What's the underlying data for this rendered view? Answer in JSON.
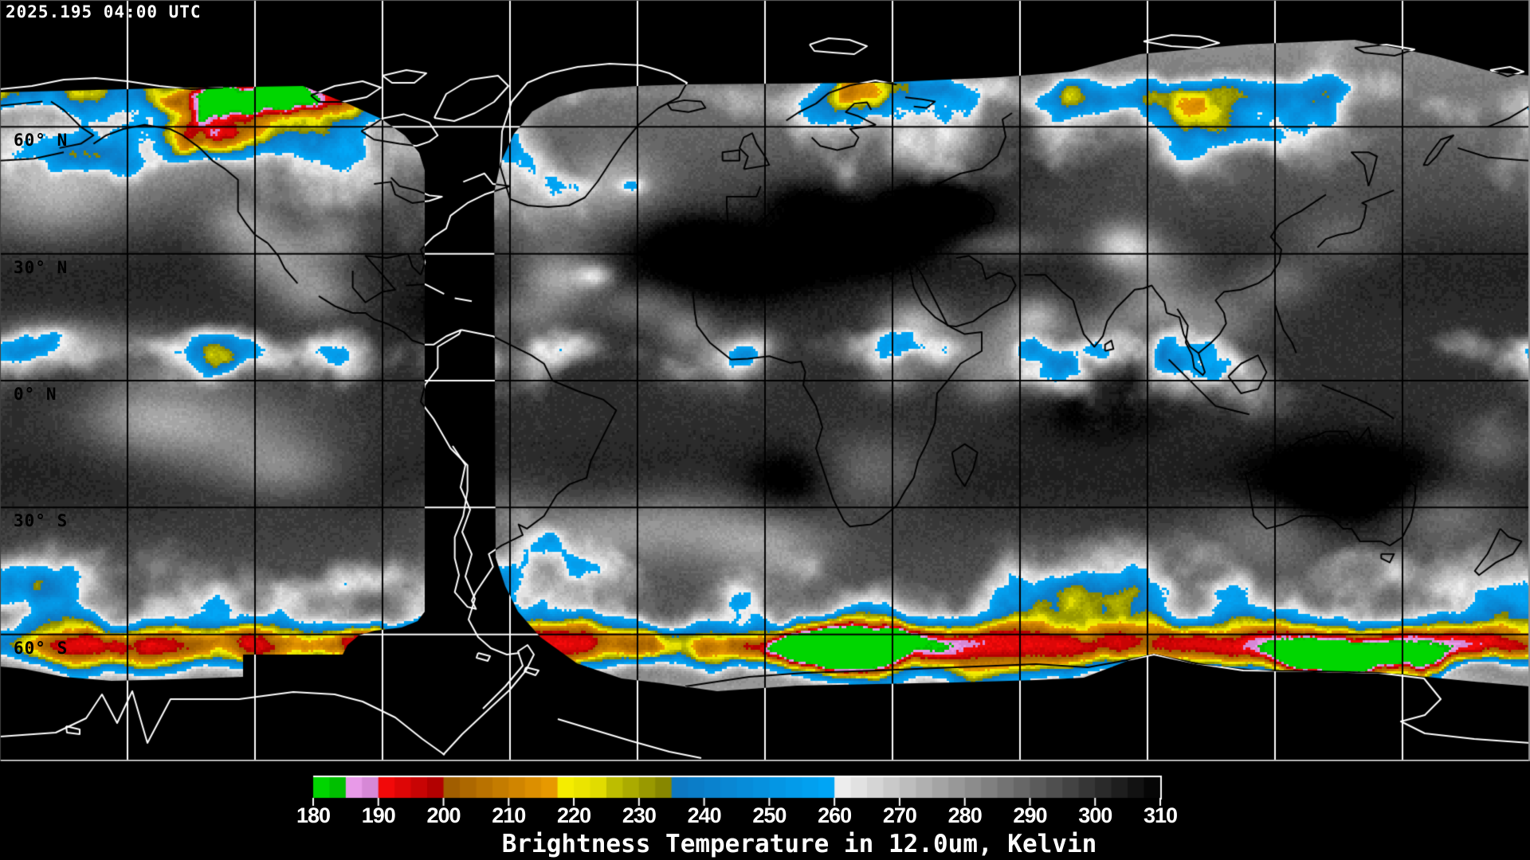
{
  "header": {
    "timestamp": "2025.195 04:00 UTC"
  },
  "map": {
    "projection": "equirectangular",
    "lon_min": -180,
    "lon_max": 180,
    "lat_min": -90,
    "lat_max": 90,
    "grid_step_deg": 30,
    "lat_labels": [
      {
        "text": "60° N",
        "lat": 60
      },
      {
        "text": "30° N",
        "lat": 30
      },
      {
        "text": "0° N",
        "lat": 0
      },
      {
        "text": "30° S",
        "lat": -30
      },
      {
        "text": "60° S",
        "lat": -60
      }
    ]
  },
  "colorbar": {
    "title": "Brightness Temperature in 12.0um, Kelvin",
    "units": "Kelvin",
    "min": 180,
    "max": 310,
    "ticks": [
      "180",
      "190",
      "200",
      "210",
      "220",
      "230",
      "240",
      "250",
      "260",
      "270",
      "280",
      "290",
      "300",
      "310"
    ],
    "segments": [
      {
        "from": 180,
        "to": 185,
        "c1": "#00e100",
        "c2": "#00b400"
      },
      {
        "from": 185,
        "to": 191,
        "c1": "#f2a4f2",
        "c2": "#c678c6"
      },
      {
        "from": 191,
        "to": 200,
        "c1": "#f50a0a",
        "c2": "#a80000"
      },
      {
        "from": 200,
        "to": 218,
        "c1": "#9c5a00",
        "c2": "#f0a000"
      },
      {
        "from": 218,
        "to": 225,
        "c1": "#f8f000",
        "c2": "#dcd800"
      },
      {
        "from": 225,
        "to": 235,
        "c1": "#c6c600",
        "c2": "#7e7e00"
      },
      {
        "from": 235,
        "to": 260,
        "c1": "#0e76c0",
        "c2": "#00a8f8"
      },
      {
        "from": 260,
        "to": 310,
        "c1": "#f4f4f4",
        "c2": "#000000"
      }
    ]
  }
}
